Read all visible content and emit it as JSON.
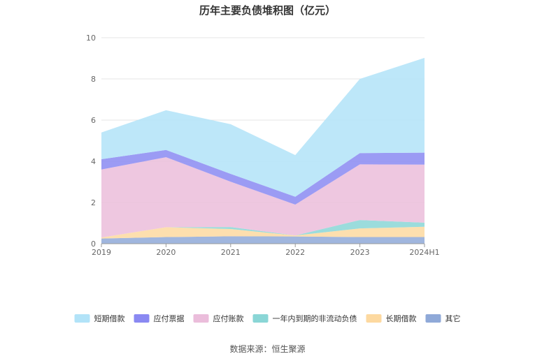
{
  "chart_data": {
    "type": "area",
    "stacked": true,
    "title": "历年主要负债堆积图（亿元）",
    "x": [
      "2019",
      "2020",
      "2021",
      "2022",
      "2023",
      "2024H1"
    ],
    "ylim": [
      0,
      10
    ],
    "yticks": [
      0,
      2,
      4,
      6,
      8,
      10
    ],
    "grid": true,
    "legend_position": "bottom",
    "series": [
      {
        "name": "其它",
        "color": "#8fa9d8",
        "values": [
          0.25,
          0.32,
          0.36,
          0.35,
          0.32,
          0.32
        ]
      },
      {
        "name": "长期借款",
        "color": "#fdd9a0",
        "values": [
          0.05,
          0.48,
          0.35,
          0.05,
          0.42,
          0.5
        ]
      },
      {
        "name": "一年内到期的非流动负债",
        "color": "#8ad6d6",
        "values": [
          0.0,
          0.0,
          0.1,
          0.0,
          0.41,
          0.2
        ]
      },
      {
        "name": "应付账款",
        "color": "#ebbddb",
        "values": [
          3.3,
          3.4,
          2.2,
          1.5,
          2.7,
          2.82
        ]
      },
      {
        "name": "应付票据",
        "color": "#8a89f2",
        "values": [
          0.5,
          0.35,
          0.38,
          0.38,
          0.55,
          0.58
        ]
      },
      {
        "name": "短期借款",
        "color": "#b2e3f8",
        "values": [
          1.3,
          1.93,
          2.41,
          2.02,
          3.6,
          4.6
        ]
      }
    ],
    "legend_order": [
      "短期借款",
      "应付票据",
      "应付账款",
      "一年内到期的非流动负债",
      "长期借款",
      "其它"
    ]
  },
  "source_note": "数据来源：恒生聚源"
}
